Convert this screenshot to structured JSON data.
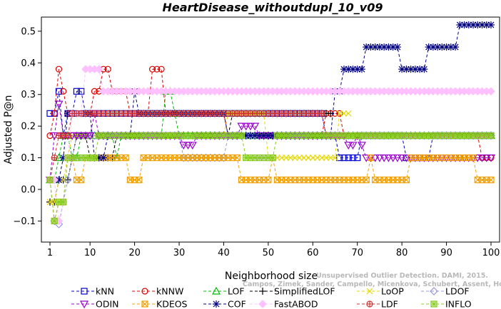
{
  "chart_data": {
    "type": "line",
    "title": "HeartDisease_withoutdupl_10_v09",
    "xlabel": "Neighborhood size",
    "ylabel": "Adjusted P@n",
    "xlim": [
      1,
      100
    ],
    "ylim": [
      -0.14,
      0.56
    ],
    "xticks": [
      1,
      10,
      20,
      30,
      40,
      50,
      60,
      70,
      80,
      90,
      100
    ],
    "yticks": [
      -0.1,
      0.0,
      0.1,
      0.2,
      0.3,
      0.4,
      0.5
    ],
    "ytick_labels": [
      "−0.1",
      "0.0",
      "0.1",
      "0.2",
      "0.3",
      "0.4",
      "0.5"
    ],
    "grid": false,
    "legend_position": "bottom",
    "watermark_lines": [
      "Unsupervised Outlier Detection. DAMI, 2015.",
      "Campos, Zimek, Sander, Campello, Micenkova, Schubert, Assent, Houle"
    ],
    "series": [
      {
        "name": "kNN",
        "color": "#0000cc",
        "marker": "square",
        "points": [
          [
            1,
            0.24
          ],
          [
            2,
            0.24
          ],
          [
            3,
            0.31
          ],
          [
            4,
            0.17
          ],
          [
            5,
            0.24
          ],
          [
            6,
            0.24
          ],
          [
            7,
            0.31
          ],
          [
            8,
            0.31
          ],
          [
            9,
            0.24
          ],
          [
            15,
            0.24
          ],
          [
            25,
            0.24
          ],
          [
            35,
            0.24
          ],
          [
            45,
            0.24
          ],
          [
            55,
            0.24
          ],
          [
            62,
            0.24
          ],
          [
            63,
            0.17
          ],
          [
            65,
            0.17
          ],
          [
            66,
            0.1
          ],
          [
            70,
            0.1
          ],
          [
            71,
            0.17
          ],
          [
            80,
            0.17
          ],
          [
            81,
            0.1
          ],
          [
            86,
            0.1
          ],
          [
            87,
            0.17
          ],
          [
            100,
            0.17
          ]
        ]
      },
      {
        "name": "kNNW",
        "color": "#dd0000",
        "marker": "circle",
        "points": [
          [
            1,
            0.17
          ],
          [
            2,
            0.24
          ],
          [
            3,
            0.38
          ],
          [
            4,
            0.31
          ],
          [
            5,
            0.24
          ],
          [
            10,
            0.24
          ],
          [
            11,
            0.31
          ],
          [
            12,
            0.31
          ],
          [
            13,
            0.38
          ],
          [
            14,
            0.38
          ],
          [
            15,
            0.31
          ],
          [
            18,
            0.31
          ],
          [
            19,
            0.24
          ],
          [
            23,
            0.24
          ],
          [
            24,
            0.38
          ],
          [
            26,
            0.38
          ],
          [
            27,
            0.24
          ],
          [
            40,
            0.24
          ],
          [
            41,
            0.17
          ],
          [
            62,
            0.17
          ],
          [
            63,
            0.24
          ],
          [
            66,
            0.24
          ],
          [
            67,
            0.17
          ],
          [
            97,
            0.17
          ],
          [
            98,
            0.1
          ],
          [
            100,
            0.1
          ]
        ]
      },
      {
        "name": "LOF",
        "color": "#00bb00",
        "marker": "triangle-up",
        "points": [
          [
            1,
            0.03
          ],
          [
            2,
            0.03
          ],
          [
            3,
            0.1
          ],
          [
            4,
            0.17
          ],
          [
            5,
            0.17
          ],
          [
            6,
            0.1
          ],
          [
            7,
            0.1
          ],
          [
            8,
            0.17
          ],
          [
            15,
            0.17
          ],
          [
            16,
            0.1
          ],
          [
            17,
            0.17
          ],
          [
            26,
            0.17
          ],
          [
            27,
            0.31
          ],
          [
            28,
            0.31
          ],
          [
            29,
            0.24
          ],
          [
            30,
            0.17
          ],
          [
            100,
            0.17
          ]
        ]
      },
      {
        "name": "SimplifiedLOF",
        "color": "#000000",
        "marker": "plus",
        "points": [
          [
            1,
            -0.04
          ],
          [
            2,
            -0.04
          ],
          [
            3,
            0.03
          ],
          [
            4,
            0.03
          ],
          [
            5,
            0.03
          ],
          [
            6,
            0.1
          ],
          [
            7,
            0.17
          ],
          [
            8,
            0.17
          ],
          [
            9,
            0.17
          ],
          [
            10,
            0.1
          ],
          [
            14,
            0.1
          ],
          [
            15,
            0.1
          ],
          [
            16,
            0.17
          ],
          [
            41,
            0.17
          ],
          [
            42,
            0.24
          ],
          [
            64,
            0.24
          ]
        ]
      },
      {
        "name": "LoOP",
        "color": "#e6d800",
        "marker": "x",
        "points": [
          [
            1,
            -0.04
          ],
          [
            2,
            -0.04
          ],
          [
            3,
            0.03
          ],
          [
            4,
            0.03
          ],
          [
            5,
            0.1
          ],
          [
            6,
            0.17
          ],
          [
            9,
            0.17
          ],
          [
            10,
            0.17
          ],
          [
            40,
            0.17
          ],
          [
            41,
            0.24
          ],
          [
            66,
            0.24
          ],
          [
            67,
            0.24
          ],
          [
            68,
            0.24
          ],
          [
            50,
            0.1
          ],
          [
            53,
            0.1
          ]
        ]
      },
      {
        "name": "LDOF",
        "color": "#9999dd",
        "marker": "diamond",
        "points": [
          [
            1,
            0.03
          ],
          [
            2,
            -0.1
          ],
          [
            3,
            -0.11
          ],
          [
            4,
            -0.04
          ],
          [
            5,
            0.03
          ],
          [
            6,
            0.1
          ],
          [
            7,
            0.17
          ],
          [
            30,
            0.17
          ],
          [
            31,
            0.1
          ],
          [
            40,
            0.1
          ],
          [
            41,
            0.17
          ],
          [
            100,
            0.17
          ]
        ]
      },
      {
        "name": "ODIN",
        "color": "#9900cc",
        "marker": "triangle-down",
        "points": [
          [
            1,
            0.03
          ],
          [
            2,
            0.17
          ],
          [
            3,
            0.27
          ],
          [
            4,
            0.17
          ],
          [
            5,
            0.17
          ],
          [
            10,
            0.17
          ],
          [
            11,
            0.24
          ],
          [
            12,
            0.17
          ],
          [
            20,
            0.17
          ],
          [
            30,
            0.17
          ],
          [
            31,
            0.14
          ],
          [
            33,
            0.14
          ],
          [
            34,
            0.17
          ],
          [
            41,
            0.17
          ],
          [
            44,
            0.2
          ],
          [
            47,
            0.2
          ],
          [
            48,
            0.17
          ],
          [
            66,
            0.17
          ],
          [
            68,
            0.14
          ],
          [
            69,
            0.14
          ],
          [
            70,
            0.17
          ],
          [
            71,
            0.14
          ],
          [
            72,
            0.1
          ],
          [
            100,
            0.1
          ]
        ]
      },
      {
        "name": "KDEOS",
        "color": "#f0a000",
        "marker": "square-x",
        "points": [
          [
            1,
            0.03
          ],
          [
            2,
            -0.1
          ],
          [
            3,
            -0.04
          ],
          [
            4,
            -0.04
          ],
          [
            5,
            0.1
          ],
          [
            6,
            0.1
          ],
          [
            7,
            0.03
          ],
          [
            8,
            0.03
          ],
          [
            9,
            0.1
          ],
          [
            18,
            0.1
          ],
          [
            19,
            0.03
          ],
          [
            21,
            0.03
          ],
          [
            22,
            0.1
          ],
          [
            40,
            0.1
          ],
          [
            41,
            0.1
          ],
          [
            42,
            0.1
          ],
          [
            44,
            0.03
          ],
          [
            50,
            0.03
          ],
          [
            51,
            0.1
          ],
          [
            52,
            0.03
          ],
          [
            72,
            0.03
          ],
          [
            73,
            0.1
          ],
          [
            74,
            0.03
          ],
          [
            81,
            0.03
          ],
          [
            82,
            0.1
          ],
          [
            96,
            0.1
          ],
          [
            97,
            0.03
          ],
          [
            100,
            0.03
          ]
        ]
      },
      {
        "name": "COF",
        "color": "#000080",
        "marker": "asterisk",
        "points": [
          [
            1,
            0.03
          ],
          [
            2,
            0.03
          ],
          [
            3,
            0.03
          ],
          [
            4,
            0.1
          ],
          [
            5,
            0.24
          ],
          [
            10,
            0.24
          ],
          [
            11,
            0.1
          ],
          [
            13,
            0.1
          ],
          [
            14,
            0.17
          ],
          [
            19,
            0.17
          ],
          [
            20,
            0.31
          ],
          [
            21,
            0.24
          ],
          [
            40,
            0.24
          ],
          [
            41,
            0.17
          ],
          [
            64,
            0.17
          ],
          [
            65,
            0.31
          ],
          [
            66,
            0.31
          ],
          [
            67,
            0.38
          ],
          [
            70,
            0.38
          ],
          [
            71,
            0.38
          ],
          [
            72,
            0.45
          ],
          [
            79,
            0.45
          ],
          [
            80,
            0.38
          ],
          [
            85,
            0.38
          ],
          [
            86,
            0.45
          ],
          [
            92,
            0.45
          ],
          [
            93,
            0.52
          ],
          [
            100,
            0.52
          ]
        ]
      },
      {
        "name": "FastABOD",
        "color": "#ffc0ff",
        "marker": "diamond-filled",
        "points": [
          [
            1,
            0.03
          ],
          [
            3,
            -0.1
          ],
          [
            4,
            -0.04
          ],
          [
            5,
            0.1
          ],
          [
            6,
            0.24
          ],
          [
            8,
            0.24
          ],
          [
            9,
            0.38
          ],
          [
            10,
            0.38
          ],
          [
            11,
            0.38
          ],
          [
            12,
            0.38
          ],
          [
            13,
            0.31
          ],
          [
            22,
            0.31
          ],
          [
            23,
            0.31
          ],
          [
            50,
            0.31
          ],
          [
            100,
            0.31
          ]
        ]
      },
      {
        "name": "LDF",
        "color": "#cc3333",
        "marker": "circle-plus",
        "points": [
          [
            1,
            0.03
          ],
          [
            2,
            0.1
          ],
          [
            3,
            0.17
          ],
          [
            5,
            0.17
          ],
          [
            6,
            0.24
          ],
          [
            62,
            0.24
          ],
          [
            63,
            0.17
          ],
          [
            100,
            0.17
          ]
        ]
      },
      {
        "name": "INFLO",
        "color": "#88cc22",
        "marker": "square-star",
        "points": [
          [
            1,
            0.03
          ],
          [
            2,
            -0.1
          ],
          [
            3,
            -0.04
          ],
          [
            4,
            -0.04
          ],
          [
            5,
            0.1
          ],
          [
            6,
            0.1
          ],
          [
            7,
            0.1
          ],
          [
            8,
            0.1
          ],
          [
            9,
            0.1
          ],
          [
            10,
            0.1
          ],
          [
            11,
            0.1
          ],
          [
            12,
            0.17
          ],
          [
            44,
            0.17
          ],
          [
            45,
            0.1
          ],
          [
            51,
            0.1
          ],
          [
            52,
            0.17
          ],
          [
            100,
            0.17
          ]
        ]
      }
    ]
  }
}
